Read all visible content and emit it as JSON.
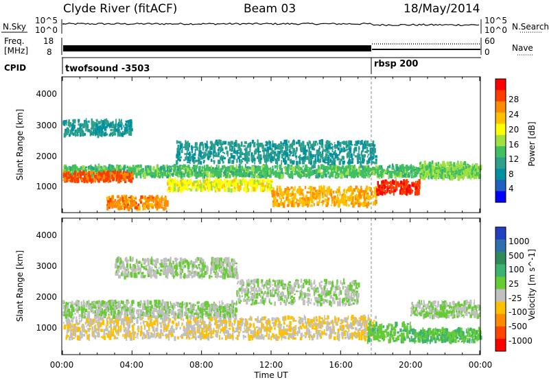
{
  "header": {
    "station": "Clyde River (fitACF)",
    "beam": "Beam 03",
    "date": "18/May/2014"
  },
  "noise_panel": {
    "left_label": "N.Sky",
    "left_ticks": [
      "10^5",
      "10^0"
    ],
    "right_ticks": [
      "10^5",
      "10^0"
    ],
    "right_label": "N.Search"
  },
  "freq_panel": {
    "left_label_1": "Freq.",
    "left_label_2": "[MHz]",
    "left_ticks": [
      "18",
      "8"
    ],
    "right_ticks": [
      "60",
      "0"
    ],
    "right_label": "Nave"
  },
  "cpid_panel": {
    "label": "CPID",
    "segments": [
      {
        "name": "twofsound -3503",
        "start_hour": 0
      },
      {
        "name": "rbsp 200",
        "start_hour": 18.0
      }
    ]
  },
  "axis": {
    "x_label": "Time UT",
    "x_ticks": [
      "00:00",
      "04:00",
      "08:00",
      "12:00",
      "16:00",
      "20:00",
      "00:00"
    ],
    "y_label": "Slant Range [km]",
    "y_ticks": [
      "4000",
      "3000",
      "2000",
      "1000"
    ]
  },
  "colorbars": {
    "power": {
      "title": "Power [dB]",
      "labels": [
        "28",
        "24",
        "20",
        "16",
        "12",
        "8",
        "4"
      ],
      "colors": [
        "#ff0000",
        "#ff3c00",
        "#ff8c00",
        "#ffc000",
        "#ffff00",
        "#a0e040",
        "#40c060",
        "#2ca08a",
        "#0090a0",
        "#2060c0",
        "#0000ff"
      ]
    },
    "velocity": {
      "title": "Velocity [m s^-1]",
      "labels": [
        "1000",
        "500",
        "100",
        "25",
        "-25",
        "-100",
        "-500",
        "-1000"
      ],
      "colors": [
        "#2040c0",
        "#2f6fb0",
        "#2e8b57",
        "#3cb371",
        "#66cc33",
        "#c0c0c0",
        "#ffc000",
        "#ff8c00",
        "#ff4500",
        "#ff0000"
      ]
    }
  },
  "chart_data": [
    {
      "type": "heatmap",
      "title": "Power [dB]",
      "xlabel": "Time UT",
      "ylabel": "Slant Range [km]",
      "xlim": [
        0,
        24
      ],
      "ylim": [
        200,
        4600
      ],
      "colorbar_range": [
        0,
        30
      ],
      "bands": [
        {
          "t0": 0.0,
          "t1": 24.0,
          "r0": 1350,
          "r1": 1700,
          "value": 12
        },
        {
          "t0": 0.0,
          "t1": 4.0,
          "r0": 1200,
          "r1": 1500,
          "value": 26
        },
        {
          "t0": 2.5,
          "t1": 6.0,
          "r0": 300,
          "r1": 700,
          "value": 24
        },
        {
          "t0": 6.0,
          "t1": 12.0,
          "r0": 900,
          "r1": 1250,
          "value": 18
        },
        {
          "t0": 12.0,
          "t1": 18.0,
          "r0": 400,
          "r1": 1000,
          "value": 22
        },
        {
          "t0": 18.0,
          "t1": 20.5,
          "r0": 800,
          "r1": 1200,
          "value": 28
        },
        {
          "t0": 0.0,
          "t1": 4.0,
          "r0": 2700,
          "r1": 3200,
          "value": 8
        },
        {
          "t0": 6.5,
          "t1": 18.0,
          "r0": 1800,
          "r1": 2500,
          "value": 8
        },
        {
          "t0": 20.5,
          "t1": 24.0,
          "r0": 1300,
          "r1": 1800,
          "value": 14
        }
      ]
    },
    {
      "type": "heatmap",
      "title": "Velocity [m s^-1]",
      "xlabel": "Time UT",
      "ylabel": "Slant Range [km]",
      "xlim": [
        0,
        24
      ],
      "ylim": [
        200,
        4600
      ],
      "colorbar_range": [
        -1000,
        1000
      ],
      "bands": [
        {
          "t0": 0.0,
          "t1": 18.0,
          "r0": 700,
          "r1": 1400,
          "value": -200
        },
        {
          "t0": 0.0,
          "t1": 10.0,
          "r0": 1400,
          "r1": 1900,
          "value": -10
        },
        {
          "t0": 3.0,
          "t1": 10.0,
          "r0": 2700,
          "r1": 3300,
          "value": -10
        },
        {
          "t0": 10.0,
          "t1": 17.0,
          "r0": 1800,
          "r1": 2600,
          "value": -10
        },
        {
          "t0": 17.5,
          "t1": 20.0,
          "r0": 600,
          "r1": 1200,
          "value": 150
        },
        {
          "t0": 20.0,
          "t1": 24.0,
          "r0": 600,
          "r1": 1000,
          "value": 200
        },
        {
          "t0": 20.0,
          "t1": 24.0,
          "r0": 1400,
          "r1": 1900,
          "value": 0
        }
      ]
    }
  ]
}
